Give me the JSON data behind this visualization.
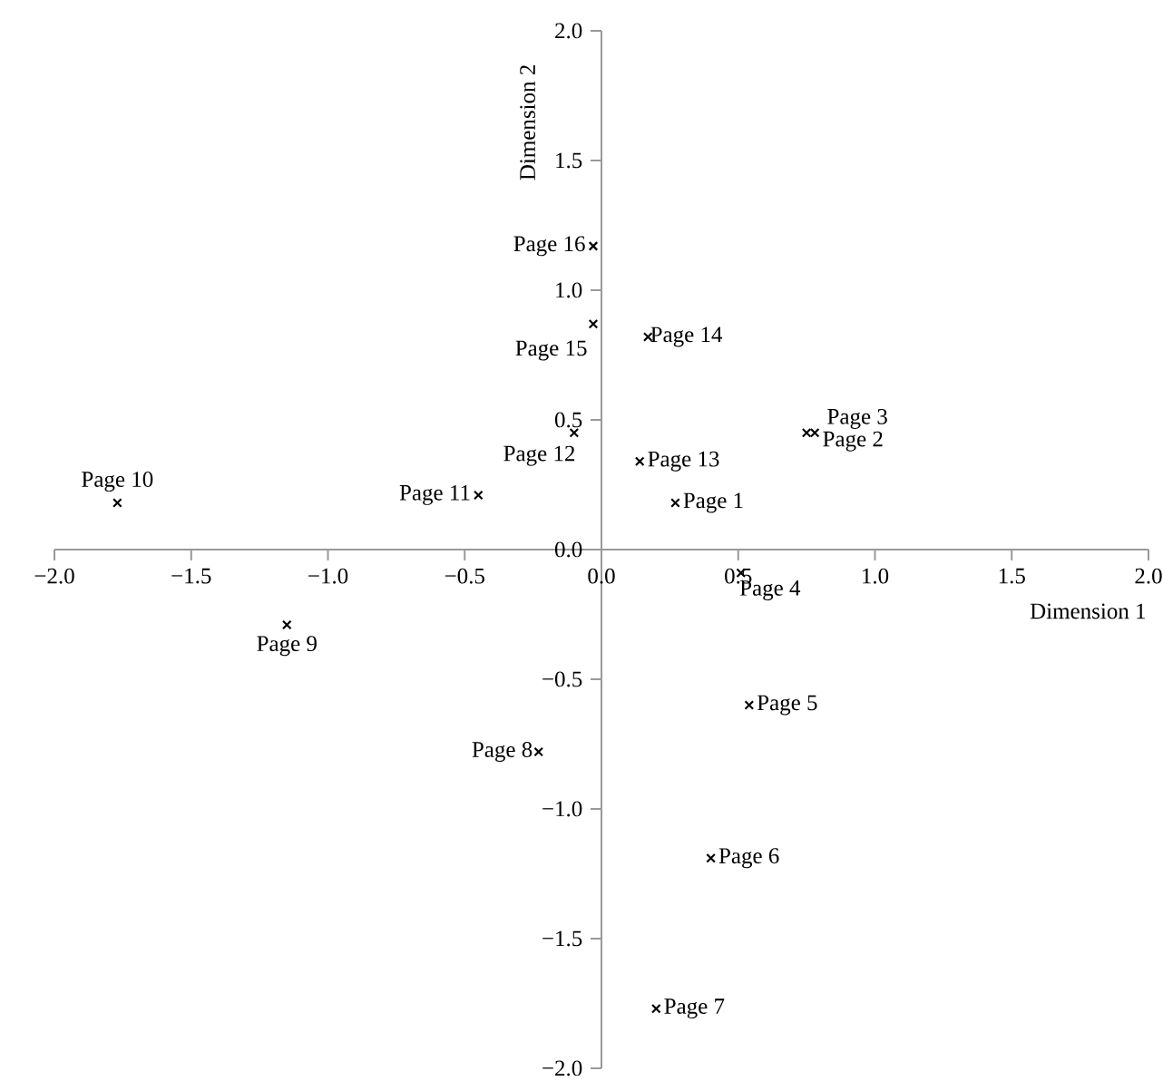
{
  "chart_data": {
    "type": "scatter",
    "xlabel": "Dimension 1",
    "ylabel": "Dimension 2",
    "marker": "cross",
    "xlim": [
      -2,
      2
    ],
    "ylim": [
      -2,
      2
    ],
    "xticks": [
      {
        "value": -2,
        "label": "−2.0"
      },
      {
        "value": -1.5,
        "label": "−1.5"
      },
      {
        "value": -1,
        "label": "−1.0"
      },
      {
        "value": -0.5,
        "label": "−0.5"
      },
      {
        "value": 0,
        "label": "0.0"
      },
      {
        "value": 0.5,
        "label": "0.5"
      },
      {
        "value": 1,
        "label": "1.0"
      },
      {
        "value": 1.5,
        "label": "1.5"
      },
      {
        "value": 2,
        "label": "2.0"
      }
    ],
    "yticks": [
      {
        "value": -2,
        "label": "−2.0"
      },
      {
        "value": -1.5,
        "label": "−1.5"
      },
      {
        "value": -1,
        "label": "−1.0"
      },
      {
        "value": -0.5,
        "label": "−0.5"
      },
      {
        "value": 0,
        "label": "0.0"
      },
      {
        "value": 0.5,
        "label": "0.5"
      },
      {
        "value": 1,
        "label": "1.0"
      },
      {
        "value": 1.5,
        "label": "1.5"
      },
      {
        "value": 2,
        "label": "2.0"
      }
    ],
    "series": [
      {
        "color": "#000000",
        "x": [
          0.27,
          0.78,
          0.75,
          0.51,
          0.54,
          0.4,
          0.2,
          -0.23,
          -1.15,
          -1.77,
          -0.45,
          -0.1,
          0.14,
          0.17,
          -0.03,
          -0.03
        ],
        "values": [
          0.18,
          0.45,
          0.45,
          -0.09,
          -0.6,
          -1.19,
          -1.77,
          -0.78,
          -0.29,
          0.18,
          0.21,
          0.45,
          0.34,
          0.82,
          0.87,
          1.17
        ]
      }
    ],
    "annotations": [
      {
        "text": "Page 1",
        "x": 0.27,
        "y": 0.18
      },
      {
        "text": "Page 2",
        "x": 0.78,
        "y": 0.45
      },
      {
        "text": "Page 3",
        "x": 0.75,
        "y": 0.45
      },
      {
        "text": "Page 4",
        "x": 0.51,
        "y": -0.09
      },
      {
        "text": "Page 5",
        "x": 0.54,
        "y": -0.6
      },
      {
        "text": "Page 6",
        "x": 0.4,
        "y": -1.19
      },
      {
        "text": "Page 7",
        "x": 0.2,
        "y": -1.77
      },
      {
        "text": "Page 8",
        "x": -0.23,
        "y": -0.78
      },
      {
        "text": "Page 9",
        "x": -1.15,
        "y": -0.29
      },
      {
        "text": "Page 10",
        "x": -1.77,
        "y": 0.18
      },
      {
        "text": "Page 11",
        "x": -0.45,
        "y": 0.21
      },
      {
        "text": "Page 12",
        "x": -0.1,
        "y": 0.45
      },
      {
        "text": "Page 13",
        "x": 0.14,
        "y": 0.34
      },
      {
        "text": "Page 14",
        "x": 0.17,
        "y": 0.82
      },
      {
        "text": "Page 15",
        "x": -0.03,
        "y": 0.87
      },
      {
        "text": "Page 16",
        "x": -0.03,
        "y": 1.17
      }
    ]
  }
}
